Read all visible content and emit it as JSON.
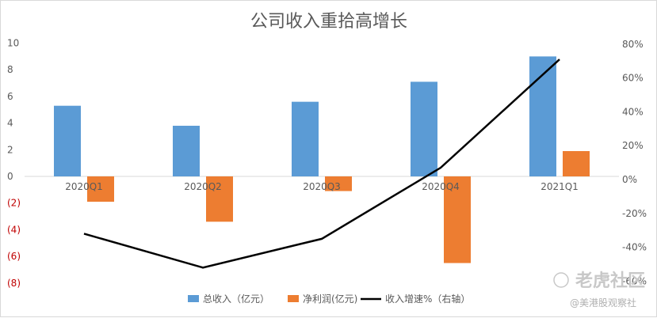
{
  "chart_data": {
    "type": "bar",
    "title": "公司收入重拾高增长",
    "categories": [
      "2020Q1",
      "2020Q2",
      "2020Q3",
      "2020Q4",
      "2021Q1"
    ],
    "series": [
      {
        "name": "总收入（亿元）",
        "type": "bar",
        "axis": "left",
        "color": "#5b9bd5",
        "values": [
          5.3,
          3.8,
          5.6,
          7.1,
          9.0
        ]
      },
      {
        "name": "净利润(亿元)",
        "type": "bar",
        "axis": "left",
        "color": "#ed7d31",
        "values": [
          -1.9,
          -3.4,
          -1.1,
          -6.5,
          1.9
        ]
      },
      {
        "name": "收入增速%（右轴）",
        "type": "line",
        "axis": "right",
        "color": "#000000",
        "values": [
          -32,
          -52,
          -35,
          7,
          71
        ]
      }
    ],
    "y_left": {
      "range": [
        -8,
        10
      ],
      "ticks": [
        "10",
        "8",
        "6",
        "4",
        "2",
        "0",
        "(2)",
        "(4)",
        "(6)",
        "(8)"
      ],
      "tick_values": [
        10,
        8,
        6,
        4,
        2,
        0,
        -2,
        -4,
        -6,
        -8
      ],
      "negative_tick_color": "#c00000"
    },
    "y_right": {
      "range": [
        -80,
        80
      ],
      "ticks": [
        "80%",
        "60%",
        "40%",
        "20%",
        "0%",
        "-20%",
        "-40%",
        "-60%"
      ],
      "tick_values": [
        80,
        60,
        40,
        20,
        0,
        -20,
        -40,
        -60
      ]
    },
    "grid": false,
    "legend_position": "bottom"
  },
  "watermark": {
    "brand": "老虎社区",
    "account": "@美港股观察社"
  }
}
